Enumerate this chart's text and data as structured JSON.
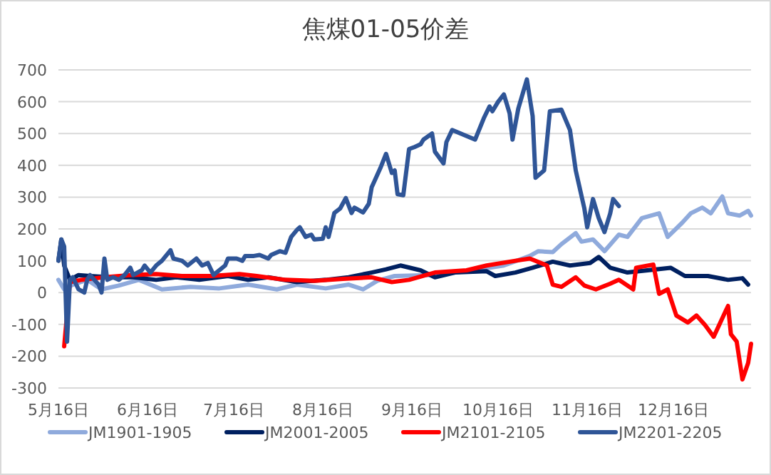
{
  "chart_data": {
    "type": "line",
    "title": "焦煤01-05价差",
    "ylim": [
      -300,
      700
    ],
    "categories": [
      "5月16日",
      null,
      null,
      null,
      null,
      null,
      null,
      null,
      null,
      null,
      null,
      null,
      null,
      null,
      null,
      null,
      null,
      null,
      null,
      null,
      null,
      null,
      null,
      null,
      null,
      null,
      null,
      null,
      null,
      null,
      null,
      "6月16日",
      null,
      null,
      null,
      null,
      null,
      null,
      null,
      null,
      null,
      null,
      null,
      null,
      null,
      null,
      null,
      null,
      null,
      null,
      null,
      null,
      null,
      null,
      null,
      null,
      null,
      null,
      null,
      null,
      null,
      "7月16日",
      null,
      null,
      null,
      null,
      null,
      null,
      null,
      null,
      null,
      null,
      null,
      null,
      null,
      null,
      null,
      null,
      null,
      null,
      null,
      null,
      null,
      null,
      null,
      null,
      null,
      null,
      null,
      null,
      null,
      null,
      "8月16日",
      null,
      null,
      null,
      null,
      null,
      null,
      null,
      null,
      null,
      null,
      null,
      null,
      null,
      null,
      null,
      null,
      null,
      null,
      null,
      null,
      null,
      null,
      null,
      null,
      null,
      null,
      null,
      null,
      null,
      null,
      "9月16日",
      null,
      null,
      null,
      null,
      null,
      null,
      null,
      null,
      null,
      null,
      null,
      null,
      null,
      null,
      null,
      null,
      null,
      null,
      null,
      null,
      null,
      null,
      null,
      null,
      null,
      null,
      null,
      null,
      null,
      "10月16日",
      null,
      null,
      null,
      null,
      null,
      null,
      null,
      null,
      null,
      null,
      null,
      null,
      null,
      null,
      null,
      null,
      null,
      null,
      null,
      null,
      null,
      null,
      null,
      null,
      null,
      null,
      null,
      null,
      null,
      null,
      "11月16日",
      null,
      null,
      null,
      null,
      null,
      null,
      null,
      null,
      null,
      null,
      null,
      null,
      null,
      null,
      null,
      null,
      null,
      null,
      null,
      null,
      null,
      null,
      null,
      null,
      null,
      null,
      null,
      null,
      null,
      "12月16日",
      null,
      null,
      null,
      null,
      null,
      null,
      null,
      null,
      null,
      null,
      null,
      null,
      null,
      null,
      null,
      null,
      null,
      null,
      null,
      null,
      null,
      null,
      null,
      null,
      null,
      null,
      null
    ],
    "yticks": [
      -300,
      -200,
      -100,
      0,
      100,
      200,
      300,
      400,
      500,
      600,
      700
    ],
    "grid": "y",
    "legend": "bottom",
    "marker": "none",
    "line_style": "solid",
    "series": [
      {
        "name": "JM1901-1905",
        "color": "#8faadc",
        "values": [
          40,
          null,
          10,
          null,
          null,
          25,
          null,
          null,
          null,
          null,
          40,
          null,
          null,
          null,
          null,
          10,
          null,
          null,
          null,
          null,
          null,
          22,
          null,
          null,
          null,
          null,
          null,
          null,
          40,
          null,
          null,
          null,
          null,
          null,
          null,
          null,
          10,
          null,
          null,
          null,
          null,
          null,
          null,
          null,
          null,
          null,
          18,
          null,
          null,
          null,
          null,
          null,
          null,
          null,
          null,
          null,
          13,
          null,
          null,
          null,
          null,
          null,
          null,
          null,
          null,
          null,
          25,
          null,
          null,
          null,
          null,
          null,
          null,
          null,
          null,
          null,
          10,
          null,
          null,
          null,
          null,
          null,
          null,
          25,
          null,
          null,
          null,
          null,
          null,
          null,
          null,
          null,
          null,
          13,
          null,
          null,
          null,
          null,
          null,
          null,
          null,
          25,
          null,
          null,
          null,
          null,
          10,
          null,
          null,
          null,
          null,
          37,
          null,
          null,
          null,
          null,
          null,
          52,
          null,
          null,
          null,
          null,
          null,
          null,
          null,
          null,
          null,
          null,
          null,
          55,
          null,
          null,
          null,
          null,
          null,
          null,
          null,
          null,
          null,
          null,
          null,
          null,
          67,
          null,
          null,
          null,
          null,
          null,
          null,
          null,
          null,
          null,
          null,
          null,
          null,
          85,
          null,
          null,
          null,
          null,
          null,
          null,
          null,
          null,
          115,
          null,
          null,
          130,
          null,
          null,
          null,
          null,
          127,
          null,
          null,
          152,
          null,
          null,
          null,
          null,
          187,
          null,
          160,
          null,
          null,
          null,
          167,
          null,
          null,
          null,
          130,
          null,
          null,
          null,
          null,
          182,
          null,
          null,
          175,
          null,
          null,
          null,
          null,
          234,
          null,
          null,
          null,
          null,
          null,
          249,
          null,
          null,
          175,
          null,
          null,
          null,
          null,
          219,
          null,
          null,
          249,
          null,
          null,
          null,
          267,
          null,
          null,
          249,
          null,
          null,
          null,
          302,
          null,
          249,
          null,
          null,
          null,
          242,
          null,
          null,
          257,
          242
        ]
      },
      {
        "name": "JM2001-2005",
        "color": "#002060",
        "values": [
          100,
          167,
          85,
          null,
          40,
          null,
          null,
          55,
          null,
          null,
          null,
          52,
          null,
          null,
          null,
          null,
          null,
          null,
          48,
          null,
          null,
          null,
          null,
          null,
          null,
          null,
          48,
          null,
          null,
          null,
          null,
          null,
          null,
          null,
          40,
          null,
          null,
          null,
          null,
          null,
          null,
          48,
          null,
          null,
          null,
          null,
          null,
          null,
          null,
          40,
          null,
          null,
          null,
          null,
          null,
          null,
          null,
          null,
          null,
          52,
          null,
          null,
          null,
          null,
          null,
          null,
          40,
          null,
          null,
          null,
          null,
          null,
          null,
          48,
          null,
          null,
          null,
          null,
          null,
          null,
          null,
          null,
          null,
          33,
          null,
          null,
          null,
          null,
          null,
          null,
          null,
          null,
          null,
          40,
          null,
          null,
          null,
          null,
          null,
          null,
          null,
          48,
          null,
          null,
          null,
          null,
          null,
          null,
          null,
          63,
          null,
          null,
          null,
          null,
          73,
          null,
          null,
          null,
          null,
          85,
          null,
          null,
          null,
          null,
          null,
          null,
          70,
          null,
          null,
          null,
          null,
          48,
          null,
          null,
          null,
          null,
          null,
          null,
          63,
          null,
          null,
          null,
          null,
          null,
          null,
          null,
          null,
          null,
          null,
          67,
          null,
          null,
          52,
          null,
          null,
          null,
          null,
          null,
          null,
          63,
          null,
          null,
          null,
          null,
          null,
          78,
          null,
          null,
          null,
          null,
          null,
          null,
          97,
          null,
          null,
          null,
          null,
          null,
          85,
          null,
          null,
          null,
          null,
          null,
          null,
          93,
          null,
          null,
          112,
          null,
          null,
          null,
          78,
          null,
          null,
          null,
          null,
          null,
          63,
          null,
          null,
          null,
          null,
          null,
          null,
          70,
          null,
          null,
          null,
          null,
          null,
          null,
          null,
          78,
          null,
          null,
          null,
          null,
          52,
          null,
          null,
          null,
          null,
          null,
          null,
          null,
          52,
          null,
          null,
          null,
          null,
          null,
          null,
          40,
          null,
          null,
          null,
          null,
          45,
          null,
          25,
          null
        ]
      },
      {
        "name": "JM2101-2105",
        "color": "#ff0000",
        "values": [
          null,
          null,
          -169,
          null,
          33,
          null,
          null,
          null,
          40,
          null,
          null,
          null,
          null,
          null,
          null,
          null,
          48,
          null,
          null,
          null,
          null,
          null,
          null,
          null,
          null,
          55,
          null,
          null,
          null,
          null,
          null,
          null,
          null,
          null,
          58,
          null,
          null,
          null,
          null,
          null,
          null,
          null,
          null,
          52,
          null,
          null,
          null,
          null,
          null,
          null,
          null,
          null,
          null,
          52,
          null,
          null,
          null,
          null,
          null,
          null,
          null,
          null,
          null,
          58,
          null,
          null,
          null,
          null,
          null,
          52,
          null,
          null,
          null,
          null,
          null,
          null,
          null,
          null,
          null,
          40,
          null,
          null,
          null,
          null,
          null,
          null,
          null,
          null,
          null,
          37,
          null,
          null,
          null,
          null,
          null,
          null,
          null,
          null,
          null,
          43,
          null,
          null,
          null,
          null,
          null,
          null,
          null,
          null,
          null,
          48,
          null,
          null,
          null,
          null,
          null,
          null,
          33,
          null,
          null,
          null,
          null,
          null,
          40,
          null,
          null,
          null,
          null,
          null,
          null,
          null,
          null,
          63,
          null,
          null,
          null,
          null,
          null,
          null,
          null,
          null,
          null,
          null,
          70,
          null,
          null,
          null,
          null,
          null,
          null,
          85,
          null,
          null,
          null,
          null,
          null,
          null,
          null,
          null,
          null,
          100,
          null,
          null,
          null,
          null,
          107,
          null,
          null,
          null,
          null,
          null,
          85,
          null,
          25,
          null,
          null,
          18,
          null,
          null,
          null,
          null,
          48,
          null,
          null,
          22,
          null,
          null,
          null,
          10,
          null,
          null,
          null,
          null,
          28,
          null,
          null,
          40,
          null,
          null,
          null,
          null,
          10,
          78,
          null,
          null,
          null,
          null,
          null,
          88,
          null,
          -4,
          null,
          null,
          10,
          null,
          null,
          -72,
          null,
          null,
          null,
          -94,
          null,
          null,
          -72,
          null,
          null,
          -102,
          null,
          null,
          -139,
          null,
          null,
          null,
          null,
          -42,
          -131,
          null,
          -154,
          null,
          -273,
          null,
          -221,
          -161
        ]
      },
      {
        "name": "JM2201-2205",
        "color": "#2f5597",
        "values": [
          100,
          167,
          145,
          -154,
          40,
          48,
          null,
          10,
          null,
          0,
          40,
          55,
          null,
          null,
          25,
          0,
          107,
          40,
          null,
          48,
          null,
          40,
          null,
          55,
          null,
          78,
          55,
          null,
          null,
          70,
          85,
          null,
          63,
          null,
          85,
          null,
          100,
          null,
          null,
          133,
          107,
          null,
          null,
          100,
          null,
          85,
          null,
          null,
          107,
          null,
          85,
          null,
          93,
          null,
          55,
          63,
          null,
          null,
          85,
          107,
          null,
          null,
          107,
          null,
          100,
          115,
          null,
          null,
          115,
          null,
          118,
          null,
          null,
          107,
          118,
          null,
          null,
          130,
          null,
          125,
          null,
          175,
          null,
          197,
          205,
          null,
          175,
          null,
          182,
          167,
          null,
          null,
          169,
          205,
          175,
          null,
          250,
          null,
          264,
          null,
          297,
          null,
          250,
          267,
          null,
          null,
          252,
          null,
          279,
          331,
          null,
          null,
          391,
          null,
          436,
          null,
          376,
          384,
          309,
          null,
          306,
          null,
          451,
          null,
          458,
          null,
          466,
          481,
          null,
          null,
          500,
          443,
          null,
          null,
          406,
          473,
          null,
          511,
          null,
          null,
          null,
          496,
          null,
          null,
          null,
          481,
          null,
          null,
          548,
          null,
          585,
          570,
          null,
          600,
          null,
          623,
          null,
          563,
          481,
          null,
          578,
          null,
          null,
          670,
          null,
          555,
          361,
          null,
          null,
          384,
          null,
          570,
          null,
          null,
          null,
          575,
          null,
          null,
          511,
          null,
          384,
          null,
          null,
          264,
          205,
          null,
          294,
          null,
          234,
          null,
          190,
          null,
          249,
          294,
          null,
          272,
          null,
          null,
          null,
          null,
          null,
          null,
          null,
          null,
          null,
          null,
          null,
          null,
          null,
          null,
          null,
          null,
          null,
          null,
          null,
          null,
          null,
          null,
          null,
          null,
          null,
          null,
          null,
          null,
          null,
          null,
          null,
          null,
          null,
          null,
          null,
          null,
          null,
          null,
          null,
          null,
          null,
          null,
          null,
          null,
          null,
          null
        ]
      }
    ]
  }
}
